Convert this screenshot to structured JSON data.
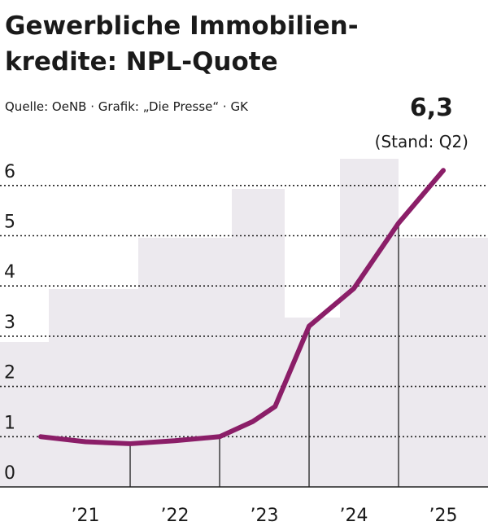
{
  "chart_data": {
    "type": "line",
    "title": [
      "Gewerbliche Immobilien-",
      "kredite: NPL-Quote"
    ],
    "subtitle": "Quelle: OeNB · Grafik: „Die Presse“ · GK",
    "annotation": "(Stand: Q2)",
    "x": [
      2021.0,
      2021.5,
      2022.0,
      2022.5,
      2023.0,
      2023.37,
      2023.62,
      2024.0,
      2024.5,
      2025.0,
      2025.5
    ],
    "values": [
      1.0,
      0.9,
      0.86,
      0.92,
      1.0,
      1.3,
      1.6,
      3.2,
      3.95,
      5.25,
      6.3
    ],
    "value_labels": [
      null,
      null,
      null,
      null,
      null,
      null,
      null,
      null,
      null,
      null,
      "6,3"
    ],
    "color": "#8b1e68",
    "xlim": [
      2020.545,
      2026.0
    ],
    "xticks": [
      {
        "value": 2021.5,
        "label": "’21"
      },
      {
        "value": 2022.5,
        "label": "’22"
      },
      {
        "value": 2023.5,
        "label": "’23"
      },
      {
        "value": 2024.5,
        "label": "’24"
      },
      {
        "value": 2025.5,
        "label": "’25"
      }
    ],
    "ylim": [
      0,
      6.5
    ],
    "yticks": [
      0,
      1,
      2,
      3,
      4,
      5,
      6
    ],
    "grid": true
  }
}
